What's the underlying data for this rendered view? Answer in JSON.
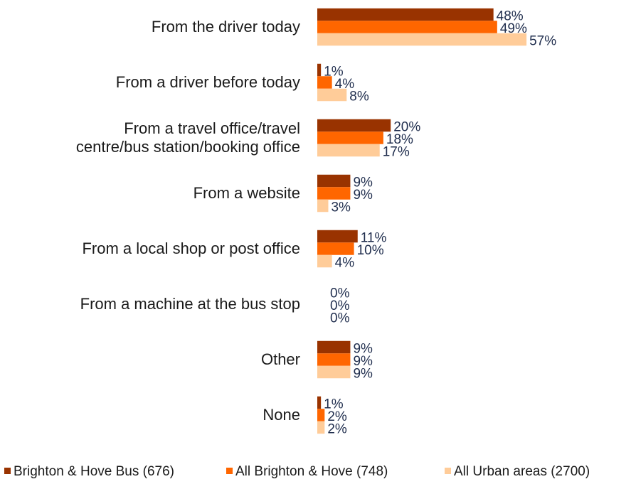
{
  "chart_data": {
    "type": "bar",
    "orientation": "horizontal",
    "categories": [
      "From the driver today",
      "From a driver before today",
      "From a travel office/travel\ncentre/bus station/booking office",
      "From a website",
      "From a local shop or post office",
      "From a machine at the bus stop",
      "Other",
      "None"
    ],
    "series": [
      {
        "name": "Brighton & Hove Bus (676)",
        "color": "#993300",
        "values": [
          48,
          1,
          20,
          9,
          11,
          0,
          9,
          1
        ],
        "value_labels": [
          "48%",
          "1%",
          "20%",
          "9%",
          "11%",
          "0%",
          "9%",
          "1%"
        ]
      },
      {
        "name": "All Brighton & Hove (748)",
        "color": "#FF6600",
        "values": [
          49,
          4,
          18,
          9,
          10,
          0,
          9,
          2
        ],
        "value_labels": [
          "49%",
          "4%",
          "18%",
          "9%",
          "10%",
          "0%",
          "9%",
          "2%"
        ]
      },
      {
        "name": "All Urban areas (2700)",
        "color": "#FFCC99",
        "values": [
          57,
          8,
          17,
          3,
          4,
          0,
          9,
          2
        ],
        "value_labels": [
          "57%",
          "8%",
          "17%",
          "3%",
          "4%",
          "0%",
          "9%",
          "2%"
        ]
      }
    ],
    "legend": "bottom"
  }
}
